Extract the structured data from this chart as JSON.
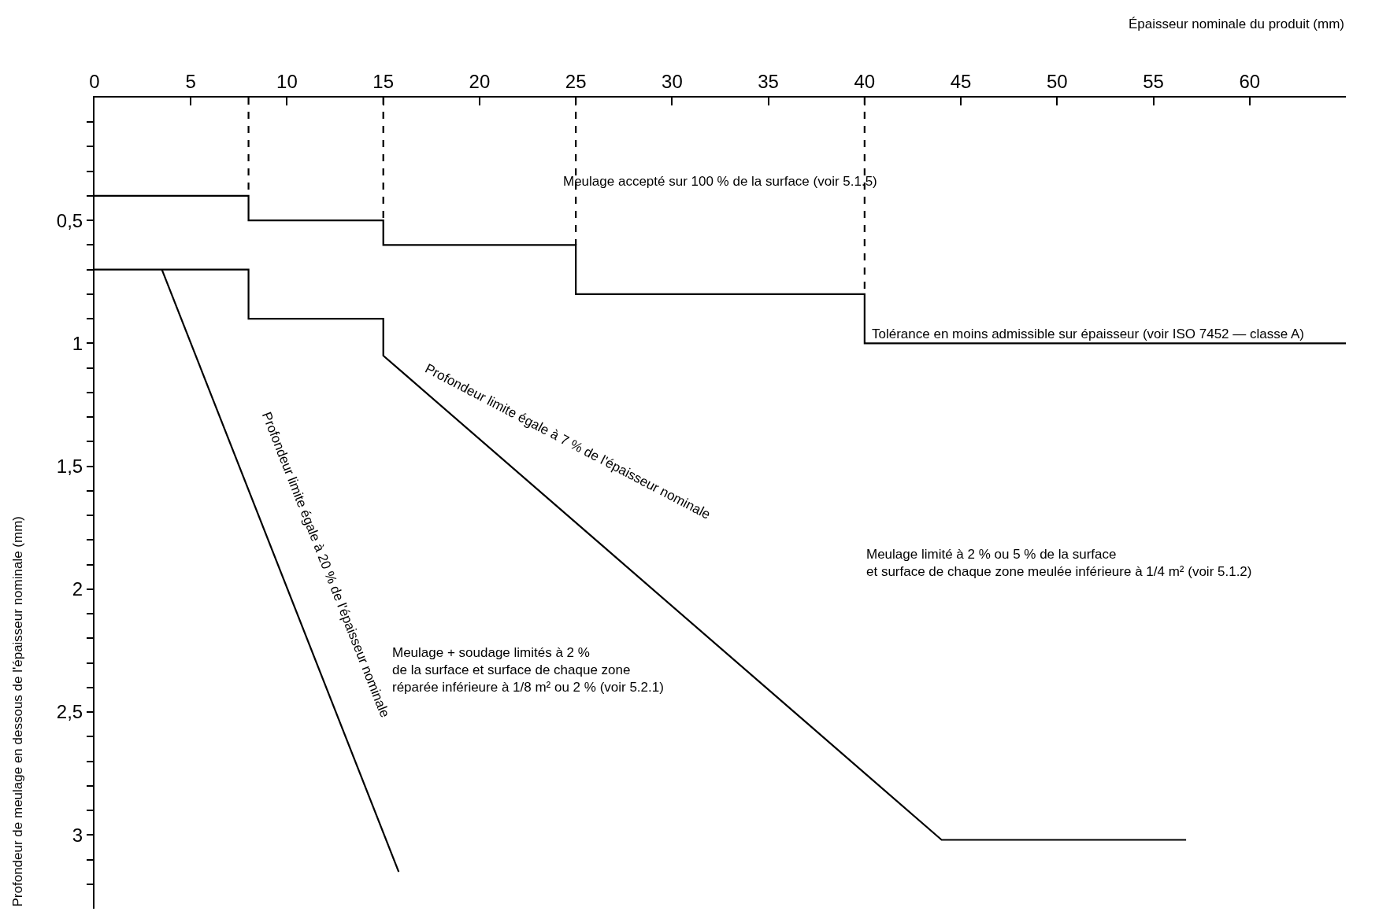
{
  "chart_data": {
    "type": "line",
    "xlabel": "Épaisseur nominale du produit (mm)",
    "ylabel": "Profondeur de meulage en dessous de l'épaisseur nominale (mm)",
    "xlim": [
      0,
      65
    ],
    "ylim": [
      3.3,
      0
    ],
    "xticks": [
      0,
      5,
      10,
      15,
      20,
      25,
      30,
      35,
      40,
      45,
      50,
      55,
      60
    ],
    "yticks": [
      {
        "value": 0.1,
        "label": null
      },
      {
        "value": 0.2,
        "label": null
      },
      {
        "value": 0.3,
        "label": null
      },
      {
        "value": 0.4,
        "label": null
      },
      {
        "value": 0.5,
        "label": "0,5"
      },
      {
        "value": 0.6,
        "label": null
      },
      {
        "value": 0.7,
        "label": null
      },
      {
        "value": 0.8,
        "label": null
      },
      {
        "value": 0.9,
        "label": null
      },
      {
        "value": 1,
        "label": "1"
      },
      {
        "value": 1.1,
        "label": null
      },
      {
        "value": 1.2,
        "label": null
      },
      {
        "value": 1.3,
        "label": null
      },
      {
        "value": 1.4,
        "label": null
      },
      {
        "value": 1.5,
        "label": "1,5"
      },
      {
        "value": 1.6,
        "label": null
      },
      {
        "value": 1.7,
        "label": null
      },
      {
        "value": 1.8,
        "label": null
      },
      {
        "value": 1.9,
        "label": null
      },
      {
        "value": 2,
        "label": "2"
      },
      {
        "value": 2.1,
        "label": null
      },
      {
        "value": 2.2,
        "label": null
      },
      {
        "value": 2.3,
        "label": null
      },
      {
        "value": 2.4,
        "label": null
      },
      {
        "value": 2.5,
        "label": "2,5"
      },
      {
        "value": 2.6,
        "label": null
      },
      {
        "value": 2.7,
        "label": null
      },
      {
        "value": 2.8,
        "label": null
      },
      {
        "value": 2.9,
        "label": null
      },
      {
        "value": 3,
        "label": "3"
      },
      {
        "value": 3.1,
        "label": null
      },
      {
        "value": 3.2,
        "label": null
      }
    ],
    "marker": "none",
    "series": [
      {
        "color": "#000000",
        "line_style": "solid",
        "x": [
          0,
          8,
          8,
          15,
          15,
          25,
          25,
          40,
          40,
          65
        ],
        "values": [
          0.4,
          0.4,
          0.5,
          0.5,
          0.6,
          0.6,
          0.8,
          0.8,
          1.0,
          1.0
        ]
      },
      {
        "color": "#000000",
        "line_style": "solid",
        "x": [
          0,
          8,
          8,
          15,
          15,
          44,
          56.7
        ],
        "values": [
          0.7,
          0.7,
          0.9,
          0.9,
          1.05,
          3.02,
          3.02
        ]
      },
      {
        "color": "#000000",
        "line_style": "solid",
        "x": [
          3.5,
          15.8
        ],
        "values": [
          0.7,
          3.15
        ]
      },
      {
        "color": "#000000",
        "line_style": "dashed",
        "x": [
          8,
          8
        ],
        "values": [
          0,
          0.4
        ]
      },
      {
        "color": "#000000",
        "line_style": "dashed",
        "x": [
          15,
          15
        ],
        "values": [
          0,
          0.5
        ]
      },
      {
        "color": "#000000",
        "line_style": "dashed",
        "x": [
          25,
          25
        ],
        "values": [
          0,
          0.6
        ]
      },
      {
        "color": "#000000",
        "line_style": "dashed",
        "x": [
          40,
          40
        ],
        "values": [
          0,
          0.8
        ]
      }
    ],
    "annotations": [
      "Meulage accepté sur 100 % de la surface (voir 5.1.5)",
      {
        "text": "Tolérance en moins admissible sur épaisseur (voir ISO 7452 — classe A)",
        "x": 40.3,
        "y": 1.0
      },
      "Profondeur limite égale à 20 % de l'épaisseur nominale",
      "Profondeur limite égale à 7 % de l'épaisseur nominale",
      "Meulage limité à 2 % ou 5 % de la surface\net surface de chaque zone meulée inférieure à 1/4 m² (voir 5.1.2)",
      "Meulage + soudage limités à 2 %\nde la surface et surface de chaque zone\nréparée inférieure à 1/8 m² ou 2 % (voir 5.2.1)"
    ]
  }
}
